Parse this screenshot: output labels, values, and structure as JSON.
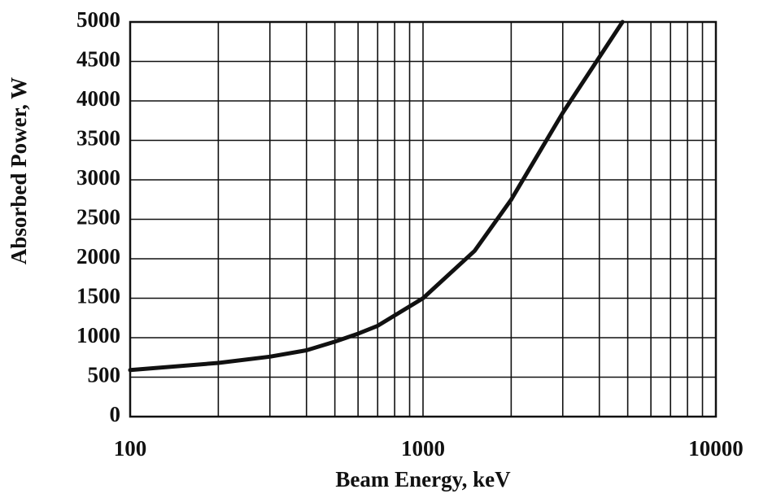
{
  "chart_data": {
    "type": "line",
    "xlabel": "Beam Energy, keV",
    "ylabel": "Absorbed Power, W",
    "xscale": "log",
    "grid": true,
    "x": [
      100,
      200,
      300,
      400,
      500,
      600,
      700,
      1000,
      1500,
      2000,
      3000,
      4800
    ],
    "series": [
      {
        "name": "Absorbed Power",
        "color": "#111111",
        "values": [
          590,
          680,
          760,
          840,
          950,
          1050,
          1150,
          1500,
          2100,
          2750,
          3850,
          5000
        ]
      }
    ],
    "xlim": [
      100,
      10000
    ],
    "ylim": [
      0,
      5000
    ],
    "xticks": [
      100,
      1000,
      10000
    ],
    "xminor": [
      200,
      300,
      400,
      500,
      600,
      700,
      800,
      900,
      2000,
      3000,
      4000,
      5000,
      6000,
      7000,
      8000,
      9000
    ],
    "yticks": [
      0,
      500,
      1000,
      1500,
      2000,
      2500,
      3000,
      3500,
      4000,
      4500,
      5000
    ]
  }
}
